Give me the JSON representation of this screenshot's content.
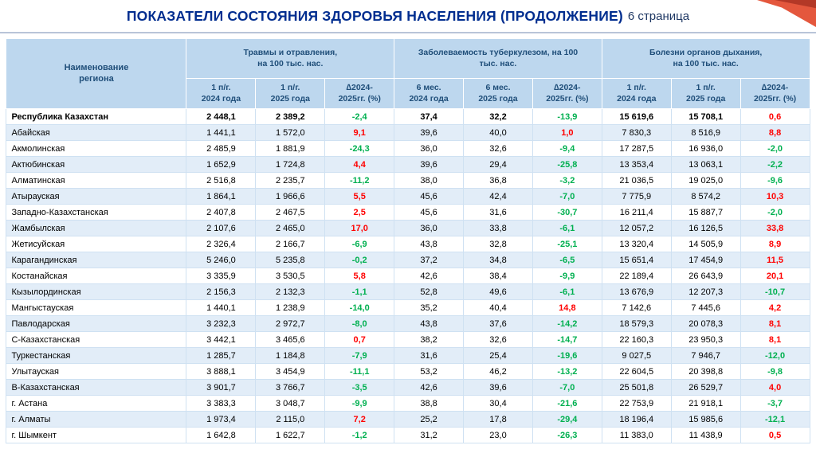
{
  "page": {
    "title": "ПОКАЗАТЕЛИ СОСТОЯНИЯ ЗДОРОВЬЯ НАСЕЛЕНИЯ (ПРОДОЛЖЕНИЕ)",
    "page_label": "6 страница",
    "colors": {
      "title_text": "#002d8f",
      "header_bg": "#bdd7ee",
      "header_text": "#1f4e79",
      "row_alt_bg": "#e2edf8",
      "positive_delta": "#ff0000",
      "negative_delta": "#00b050",
      "corner_ribbon": "#e4573d"
    }
  },
  "table": {
    "region_header": "Наименование\nрегиона",
    "groups": [
      {
        "label": "Травмы и отравления,\nна 100 тыс. нас.",
        "columns": [
          "1 п/г.\n2024 года",
          "1 п/г.\n2025 года",
          "∆2024-\n2025гг. (%)"
        ]
      },
      {
        "label": "Заболеваемость туберкулезом, на 100\nтыс. нас.",
        "columns": [
          "6 мес.\n2024 года",
          "6 мес.\n2025 года",
          "∆2024-\n2025гг. (%)"
        ]
      },
      {
        "label": "Болезни органов дыхания,\nна 100 тыс. нас.",
        "columns": [
          "1 п/г.\n2024 года",
          "1 п/г.\n2025 года",
          "∆2024-\n2025гг. (%)"
        ]
      }
    ],
    "delta_column_indexes": [
      2,
      5,
      8
    ],
    "rows": [
      {
        "name": "Республика Казахстан",
        "bold": true,
        "values": [
          "2 448,1",
          "2 389,2",
          "-2,4",
          "37,4",
          "32,2",
          "-13,9",
          "15 619,6",
          "15 708,1",
          "0,6"
        ]
      },
      {
        "name": "Абайская",
        "bold": false,
        "values": [
          "1 441,1",
          "1 572,0",
          "9,1",
          "39,6",
          "40,0",
          "1,0",
          "7 830,3",
          "8 516,9",
          "8,8"
        ]
      },
      {
        "name": "Акмолинская",
        "bold": false,
        "values": [
          "2 485,9",
          "1 881,9",
          "-24,3",
          "36,0",
          "32,6",
          "-9,4",
          "17 287,5",
          "16 936,0",
          "-2,0"
        ]
      },
      {
        "name": "Актюбинская",
        "bold": false,
        "values": [
          "1 652,9",
          "1 724,8",
          "4,4",
          "39,6",
          "29,4",
          "-25,8",
          "13 353,4",
          "13 063,1",
          "-2,2"
        ]
      },
      {
        "name": "Алматинская",
        "bold": false,
        "values": [
          "2 516,8",
          "2 235,7",
          "-11,2",
          "38,0",
          "36,8",
          "-3,2",
          "21 036,5",
          "19 025,0",
          "-9,6"
        ]
      },
      {
        "name": "Атырауская",
        "bold": false,
        "values": [
          "1 864,1",
          "1 966,6",
          "5,5",
          "45,6",
          "42,4",
          "-7,0",
          "7 775,9",
          "8 574,2",
          "10,3"
        ]
      },
      {
        "name": "Западно-Казахстанская",
        "bold": false,
        "values": [
          "2 407,8",
          "2 467,5",
          "2,5",
          "45,6",
          "31,6",
          "-30,7",
          "16 211,4",
          "15 887,7",
          "-2,0"
        ]
      },
      {
        "name": "Жамбылская",
        "bold": false,
        "values": [
          "2 107,6",
          "2 465,0",
          "17,0",
          "36,0",
          "33,8",
          "-6,1",
          "12 057,2",
          "16 126,5",
          "33,8"
        ]
      },
      {
        "name": "Жетисуйская",
        "bold": false,
        "values": [
          "2 326,4",
          "2 166,7",
          "-6,9",
          "43,8",
          "32,8",
          "-25,1",
          "13 320,4",
          "14 505,9",
          "8,9"
        ]
      },
      {
        "name": "Карагандинская",
        "bold": false,
        "values": [
          "5 246,0",
          "5 235,8",
          "-0,2",
          "37,2",
          "34,8",
          "-6,5",
          "15 651,4",
          "17 454,9",
          "11,5"
        ]
      },
      {
        "name": "Костанайская",
        "bold": false,
        "values": [
          "3 335,9",
          "3 530,5",
          "5,8",
          "42,6",
          "38,4",
          "-9,9",
          "22 189,4",
          "26 643,9",
          "20,1"
        ]
      },
      {
        "name": "Кызылординская",
        "bold": false,
        "values": [
          "2 156,3",
          "2 132,3",
          "-1,1",
          "52,8",
          "49,6",
          "-6,1",
          "13 676,9",
          "12 207,3",
          "-10,7"
        ]
      },
      {
        "name": "Мангыстауская",
        "bold": false,
        "values": [
          "1 440,1",
          "1 238,9",
          "-14,0",
          "35,2",
          "40,4",
          "14,8",
          "7 142,6",
          "7 445,6",
          "4,2"
        ]
      },
      {
        "name": "Павлодарская",
        "bold": false,
        "values": [
          "3 232,3",
          "2 972,7",
          "-8,0",
          "43,8",
          "37,6",
          "-14,2",
          "18 579,3",
          "20 078,3",
          "8,1"
        ]
      },
      {
        "name": "С-Казахстанская",
        "bold": false,
        "values": [
          "3 442,1",
          "3 465,6",
          "0,7",
          "38,2",
          "32,6",
          "-14,7",
          "22 160,3",
          "23 950,3",
          "8,1"
        ]
      },
      {
        "name": "Туркестанская",
        "bold": false,
        "values": [
          "1 285,7",
          "1 184,8",
          "-7,9",
          "31,6",
          "25,4",
          "-19,6",
          "9 027,5",
          "7 946,7",
          "-12,0"
        ]
      },
      {
        "name": "Улытауская",
        "bold": false,
        "values": [
          "3 888,1",
          "3 454,9",
          "-11,1",
          "53,2",
          "46,2",
          "-13,2",
          "22 604,5",
          "20 398,8",
          "-9,8"
        ]
      },
      {
        "name": "В-Казахстанская",
        "bold": false,
        "values": [
          "3 901,7",
          "3 766,7",
          "-3,5",
          "42,6",
          "39,6",
          "-7,0",
          "25 501,8",
          "26 529,7",
          "4,0"
        ]
      },
      {
        "name": "г. Астана",
        "bold": false,
        "values": [
          "3 383,3",
          "3 048,7",
          "-9,9",
          "38,8",
          "30,4",
          "-21,6",
          "22 753,9",
          "21 918,1",
          "-3,7"
        ]
      },
      {
        "name": "г. Алматы",
        "bold": false,
        "values": [
          "1 973,4",
          "2 115,0",
          "7,2",
          "25,2",
          "17,8",
          "-29,4",
          "18 196,4",
          "15 985,6",
          "-12,1"
        ]
      },
      {
        "name": "г. Шымкент",
        "bold": false,
        "values": [
          "1 642,8",
          "1 622,7",
          "-1,2",
          "31,2",
          "23,0",
          "-26,3",
          "11 383,0",
          "11 438,9",
          "0,5"
        ]
      }
    ]
  }
}
